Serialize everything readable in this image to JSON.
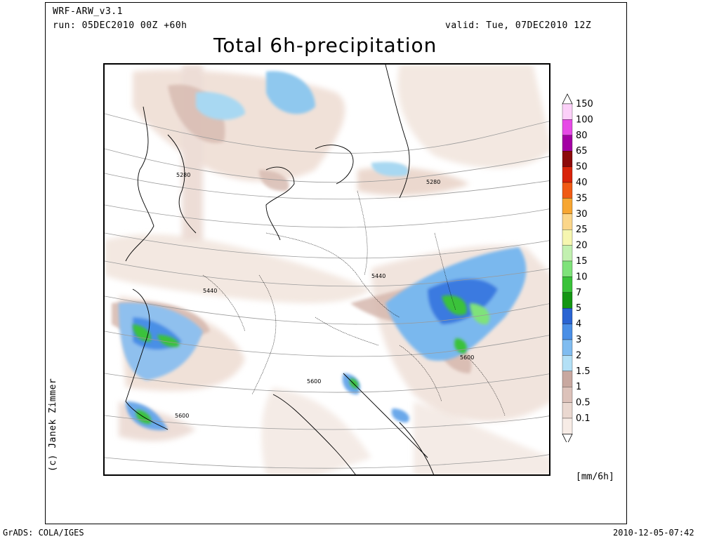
{
  "header": {
    "model": "WRF-ARW_v3.1",
    "run": "run: 05DEC2010 00Z +60h",
    "valid": "valid: Tue, 07DEC2010 12Z",
    "title": "Total 6h-precipitation"
  },
  "credit": "(c) Janek Zimmer",
  "unit": "[mm/6h]",
  "footer": {
    "left": "GrADS: COLA/IGES",
    "right": "2010-12-05-07:42"
  },
  "contour_labels": [
    "5280",
    "5280",
    "5440",
    "5440",
    "5600",
    "5600",
    "5600"
  ],
  "colorbar": {
    "levels": [
      "150",
      "100",
      "80",
      "65",
      "50",
      "40",
      "35",
      "30",
      "25",
      "20",
      "15",
      "10",
      "7",
      "5",
      "4",
      "3",
      "2",
      "1.5",
      "1",
      "0.5",
      "0.1"
    ],
    "colors": [
      "#fbd0f8",
      "#e64be6",
      "#a300a3",
      "#8c0a0a",
      "#d8240a",
      "#f05a14",
      "#f7a632",
      "#fbd68a",
      "#f6f6b0",
      "#c2f0b0",
      "#7fe27a",
      "#3ac23a",
      "#149614",
      "#2a64d2",
      "#4a8fe6",
      "#80bcf0",
      "#b3e0f6",
      "#c8a8a0",
      "#dcc2ba",
      "#ead8d0",
      "#f7ece6"
    ]
  }
}
